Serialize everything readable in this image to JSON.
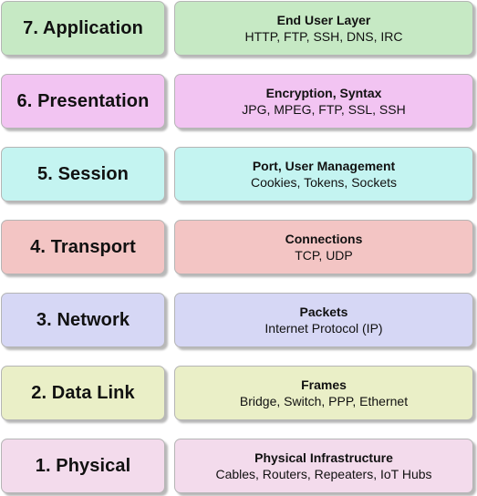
{
  "layers": [
    {
      "name": "7. Application",
      "title": "End User Layer",
      "subtitle": "HTTP, FTP, SSH, DNS, IRC",
      "color": "#c6e9c4"
    },
    {
      "name": "6. Presentation",
      "title": "Encryption, Syntax",
      "subtitle": "JPG, MPEG, FTP, SSL, SSH",
      "color": "#f2c4f2"
    },
    {
      "name": "5. Session",
      "title": "Port, User Management",
      "subtitle": "Cookies, Tokens, Sockets",
      "color": "#c4f4f1"
    },
    {
      "name": "4. Transport",
      "title": "Connections",
      "subtitle": "TCP, UDP",
      "color": "#f3c5c4"
    },
    {
      "name": "3. Network",
      "title": "Packets",
      "subtitle": "Internet Protocol (IP)",
      "color": "#d6d7f5"
    },
    {
      "name": "2. Data Link",
      "title": "Frames",
      "subtitle": "Bridge, Switch, PPP, Ethernet",
      "color": "#eaefc7"
    },
    {
      "name": "1. Physical",
      "title": "Physical Infrastructure",
      "subtitle": "Cables, Routers, Repeaters, IoT Hubs",
      "color": "#f3dbec"
    }
  ]
}
